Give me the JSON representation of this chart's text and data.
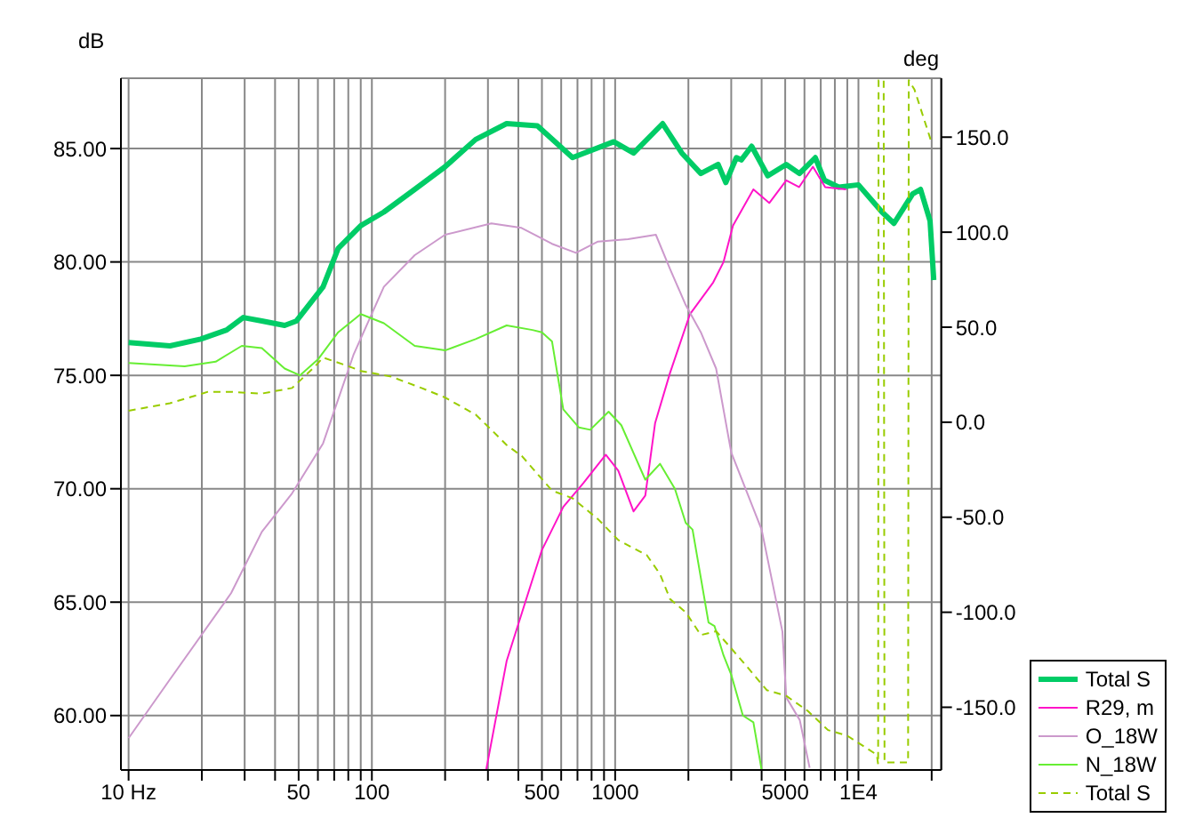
{
  "chart_data": {
    "type": "line",
    "ylabel": "dB",
    "y2label": "deg",
    "log": "x",
    "grid": true,
    "legend": "bottom right",
    "marker": "none",
    "xlim": [
      9.3,
      21900
    ],
    "xticks": [
      {
        "value": 10,
        "label": "10 Hz"
      },
      {
        "value": 20,
        "label": null
      },
      {
        "value": 30,
        "label": null
      },
      {
        "value": 40,
        "label": null
      },
      50,
      {
        "value": 60,
        "label": null
      },
      {
        "value": 70,
        "label": null
      },
      {
        "value": 80,
        "label": null
      },
      {
        "value": 90,
        "label": null
      },
      100,
      {
        "value": 200,
        "label": null
      },
      {
        "value": 300,
        "label": null
      },
      {
        "value": 400,
        "label": null
      },
      500,
      {
        "value": 600,
        "label": null
      },
      {
        "value": 700,
        "label": null
      },
      {
        "value": 800,
        "label": null
      },
      {
        "value": 900,
        "label": null
      },
      1000,
      {
        "value": 2000,
        "label": null
      },
      {
        "value": 3000,
        "label": null
      },
      {
        "value": 4000,
        "label": null
      },
      5000,
      {
        "value": 6000,
        "label": null
      },
      {
        "value": 7000,
        "label": null
      },
      {
        "value": 8000,
        "label": null
      },
      {
        "value": 9000,
        "label": null
      },
      {
        "value": 10000,
        "label": "1E4"
      },
      {
        "value": 20000,
        "label": null
      }
    ],
    "ylim": [
      57.6,
      88.1
    ],
    "yticks": [
      {
        "value": 60,
        "label": "60.00"
      },
      {
        "value": 65,
        "label": "65.00"
      },
      {
        "value": 70,
        "label": "70.00"
      },
      {
        "value": 75,
        "label": "75.00"
      },
      {
        "value": 80,
        "label": "80.00"
      },
      {
        "value": 85,
        "label": "85.00"
      }
    ],
    "y2lim": [
      -183,
      181
    ],
    "y2ticks": [
      {
        "value": -150,
        "label": "-150.0"
      },
      {
        "value": -100,
        "label": "-100.0"
      },
      {
        "value": -50,
        "label": "-50.0"
      },
      {
        "value": 0,
        "label": "0.0"
      },
      {
        "value": 50,
        "label": "50.0"
      },
      {
        "value": 100,
        "label": "100.0"
      },
      {
        "value": 150,
        "label": "150.0"
      }
    ],
    "series": [
      {
        "name": "Total S",
        "color": "#00cc66",
        "line_style": "solid",
        "x": [
          10,
          14.8,
          19.8,
          25.3,
          29.6,
          35.3,
          43.8,
          49,
          63,
          72.7,
          90,
          112,
          150,
          200,
          267,
          358,
          479,
          668,
          987,
          1191,
          1568,
          1880,
          2250,
          2650,
          2850,
          3150,
          3300,
          3640,
          4240,
          5050,
          5720,
          6650,
          7250,
          8300,
          10000,
          12500,
          14000,
          16700,
          18000,
          19700,
          20400
        ],
        "values": [
          76.45,
          76.3,
          76.6,
          77.0,
          77.55,
          77.4,
          77.2,
          77.4,
          78.9,
          80.6,
          81.6,
          82.2,
          83.2,
          84.2,
          85.4,
          86.1,
          86.0,
          84.6,
          85.3,
          84.8,
          86.1,
          84.8,
          83.9,
          84.3,
          83.5,
          84.6,
          84.5,
          85.1,
          83.8,
          84.3,
          83.9,
          84.6,
          83.6,
          83.3,
          83.4,
          82.2,
          81.7,
          83.0,
          83.2,
          81.8,
          79.2
        ]
      },
      {
        "name": "R29, m",
        "color": "#ff14c8",
        "line_style": "solid",
        "x": [
          295,
          358,
          430,
          500,
          612,
          740,
          915,
          1030,
          1190,
          1330,
          1460,
          1680,
          2030,
          2530,
          2790,
          3050,
          3700,
          4300,
          5050,
          5700,
          6500,
          7300,
          8900
        ],
        "values": [
          57.6,
          62.4,
          65.1,
          67.3,
          69.2,
          70.25,
          71.5,
          70.8,
          69.0,
          69.7,
          72.9,
          75.1,
          77.7,
          79.1,
          80.0,
          81.6,
          83.2,
          82.6,
          83.6,
          83.3,
          84.2,
          83.3,
          83.2
        ]
      },
      {
        "name": "O_18W",
        "color": "#cc99cc",
        "line_style": "solid",
        "x": [
          10,
          14.8,
          26.4,
          35.3,
          47,
          63,
          84,
          112,
          150,
          200,
          310,
          412,
          550,
          690,
          850,
          1130,
          1470,
          1680,
          1950,
          2250,
          2600,
          3000,
          4000,
          4870,
          5050,
          5740,
          6300
        ],
        "values": [
          59.0,
          61.6,
          65.4,
          68.1,
          69.8,
          72.0,
          75.9,
          78.9,
          80.3,
          81.2,
          81.7,
          81.5,
          80.8,
          80.4,
          80.9,
          81.0,
          81.2,
          79.7,
          78.1,
          76.9,
          75.3,
          71.6,
          68.2,
          63.7,
          60.8,
          59.8,
          57.7
        ]
      },
      {
        "name": "N_18W",
        "color": "#66ee33",
        "line_style": "solid",
        "x": [
          10,
          17,
          22.8,
          29.2,
          35.3,
          43.8,
          50.6,
          60,
          72.7,
          90,
          112,
          150,
          200,
          267,
          358,
          457,
          500,
          550,
          612,
          710,
          790,
          940,
          1060,
          1330,
          1530,
          1760,
          1950,
          2080,
          2420,
          2560,
          2790,
          3000,
          3350,
          3700,
          4000
        ],
        "values": [
          75.55,
          75.4,
          75.6,
          76.3,
          76.2,
          75.3,
          75.0,
          75.7,
          76.9,
          77.7,
          77.3,
          76.3,
          76.1,
          76.6,
          77.2,
          77.0,
          76.9,
          76.5,
          73.5,
          72.7,
          72.6,
          73.4,
          72.8,
          70.4,
          71.1,
          70.0,
          68.5,
          68.2,
          64.1,
          63.95,
          62.65,
          61.8,
          60.0,
          59.7,
          57.6
        ]
      },
      {
        "name": "Total S",
        "color": "#99cc00",
        "line_style": "dashed",
        "axis": "y2",
        "x": [
          10,
          14.8,
          21.2,
          26.4,
          35,
          47,
          58,
          63,
          78,
          90,
          120,
          160,
          200,
          267,
          310,
          358,
          415,
          550,
          668,
          850,
          1030,
          1350,
          1530,
          1680,
          1950,
          2250,
          2600,
          3000,
          3450,
          4200,
          5050,
          6200,
          7500,
          9000,
          11900,
          12050,
          12100,
          12700,
          12800,
          16000,
          16100,
          17000,
          20000
        ],
        "values": [
          6,
          10,
          16,
          16,
          15,
          18,
          29,
          34,
          30,
          27,
          24,
          18,
          13,
          4,
          -4,
          -12,
          -18,
          -36,
          -40,
          -51,
          -62,
          -70,
          -80,
          -93,
          -100,
          -112,
          -110,
          -119,
          -128,
          -141,
          -144,
          -152,
          -162,
          -165,
          -175,
          -180,
          180,
          180,
          -179,
          -179,
          180,
          175,
          147
        ]
      }
    ]
  }
}
